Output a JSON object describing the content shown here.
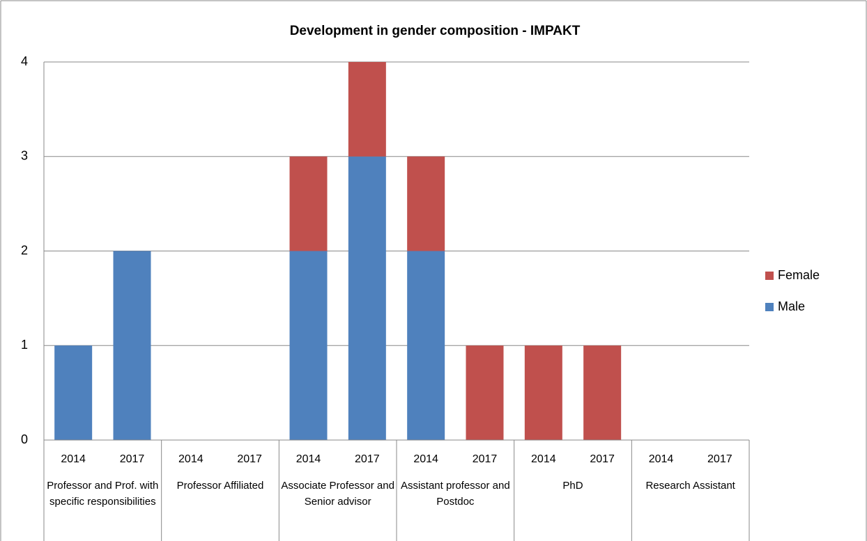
{
  "chart_data": {
    "type": "stacked_bar",
    "title": "Development in gender composition - IMPAKT",
    "categories": [
      "2014",
      "2017",
      "2014",
      "2017",
      "2014",
      "2017",
      "2014",
      "2017",
      "2014",
      "2017",
      "2014",
      "2017"
    ],
    "groups": [
      "Professor and Prof. with specific responsibilities",
      "Professor Affiliated",
      "Associate Professor and Senior advisor",
      "Assistant professor and Postdoc",
      "PhD",
      "Research Assistant"
    ],
    "series": [
      {
        "name": "Male",
        "color": "#4f81bd",
        "values": [
          1,
          2,
          0,
          0,
          2,
          3,
          2,
          0,
          0,
          0,
          0,
          0
        ]
      },
      {
        "name": "Female",
        "color": "#c0504d",
        "values": [
          0,
          0,
          0,
          0,
          1,
          1,
          1,
          1,
          1,
          1,
          0,
          0
        ]
      }
    ],
    "ylim": [
      0,
      4
    ],
    "yticks": [
      0,
      1,
      2,
      3,
      4
    ],
    "grid": true,
    "legend": "right"
  }
}
